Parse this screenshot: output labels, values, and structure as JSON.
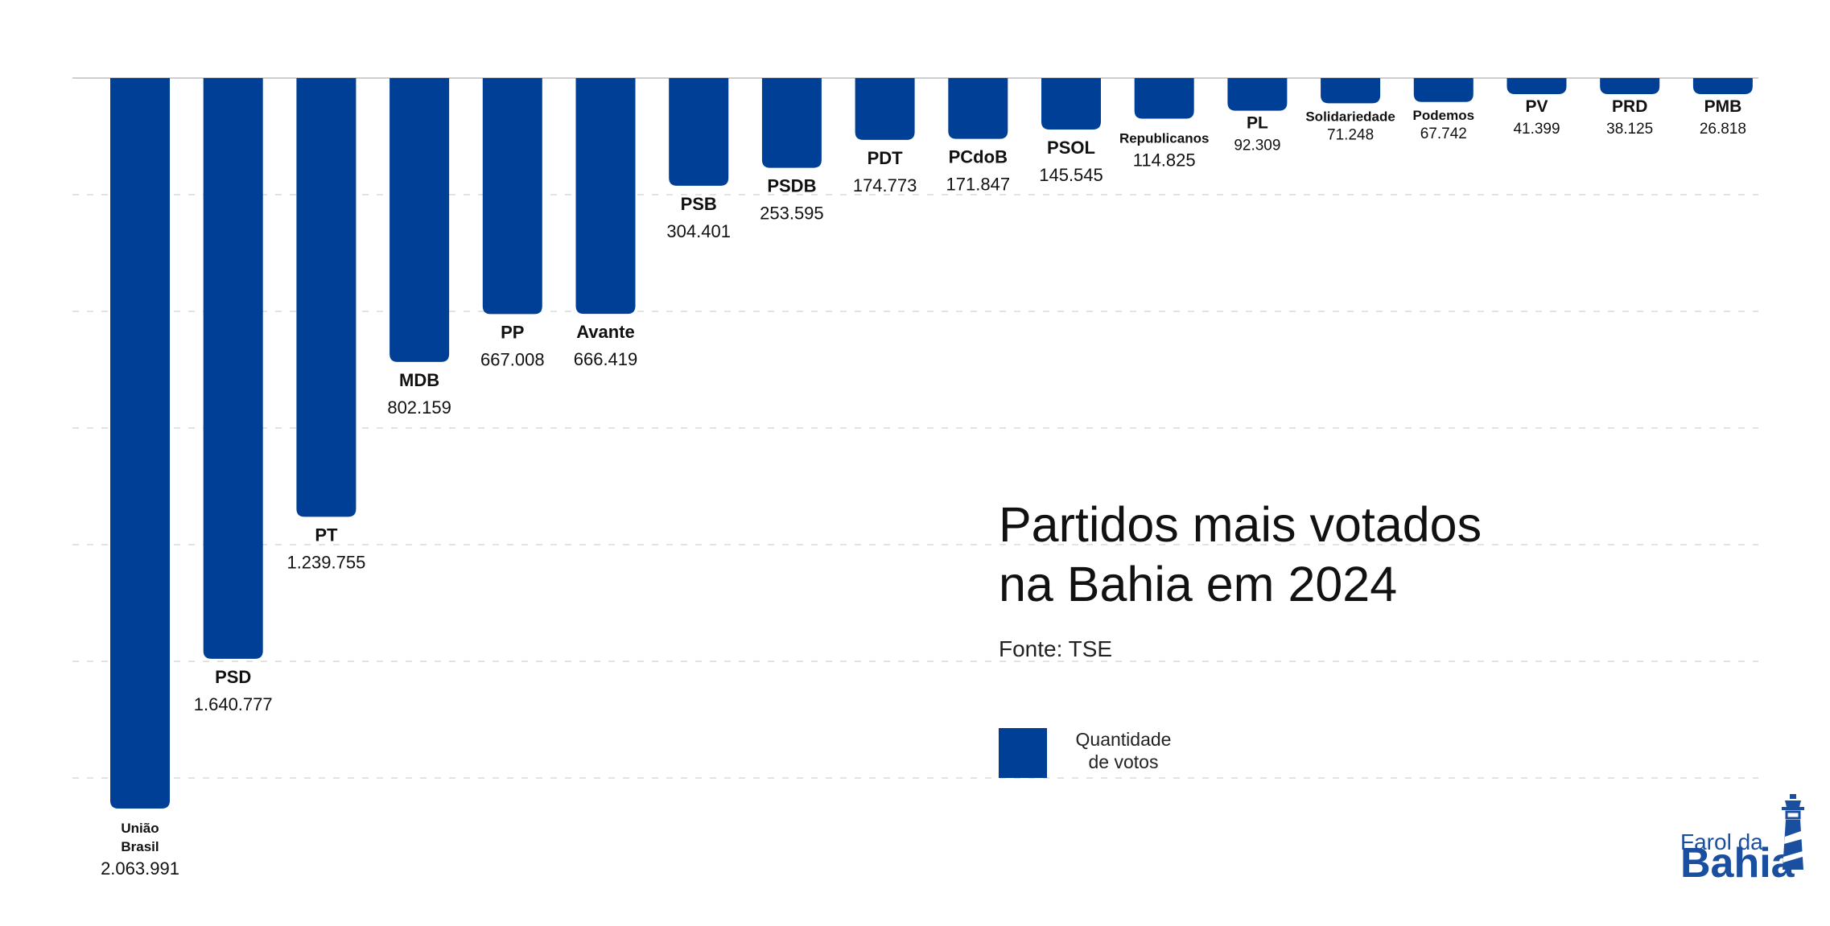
{
  "chart_data": {
    "type": "bar",
    "orientation": "downward",
    "title": [
      "Partidos mais votados",
      "na Bahia em 2024"
    ],
    "source": "Fonte: TSE",
    "legend": [
      "Quantidade",
      "de votos"
    ],
    "bar_color": "#003f96",
    "grid": true,
    "categories": [
      "União Brasil",
      "PSD",
      "PT",
      "MDB",
      "PP",
      "Avante",
      "PSB",
      "PSDB",
      "PDT",
      "PCdoB",
      "PSOL",
      "Republicanos",
      "PL",
      "Solidariedade",
      "Podemos",
      "PV",
      "PRD",
      "PMB"
    ],
    "category_lines": [
      [
        "União",
        "Brasil"
      ],
      [
        "PSD"
      ],
      [
        "PT"
      ],
      [
        "MDB"
      ],
      [
        "PP"
      ],
      [
        "Avante"
      ],
      [
        "PSB"
      ],
      [
        "PSDB"
      ],
      [
        "PDT"
      ],
      [
        "PCdoB"
      ],
      [
        "PSOL"
      ],
      [
        "Republicanos"
      ],
      [
        "PL"
      ],
      [
        "Solidariedade"
      ],
      [
        "Podemos"
      ],
      [
        "PV"
      ],
      [
        "PRD"
      ],
      [
        "PMB"
      ]
    ],
    "values": [
      2063991,
      1640777,
      1239755,
      802159,
      667008,
      666419,
      304401,
      253595,
      174773,
      171847,
      145545,
      114825,
      92309,
      71248,
      67742,
      41399,
      38125,
      26818
    ],
    "value_labels": [
      "2.063.991",
      "1.640.777",
      "1.239.755",
      "802.159",
      "667.008",
      "666.419",
      "304.401",
      "253.595",
      "174.773",
      "171.847",
      "145.545",
      "114.825",
      "92.309",
      "71.248",
      "67.742",
      "41.399",
      "38.125",
      "26.818"
    ]
  },
  "logo": {
    "line1": "Farol da",
    "line2": "Bahia",
    "icon": "lighthouse-icon"
  }
}
